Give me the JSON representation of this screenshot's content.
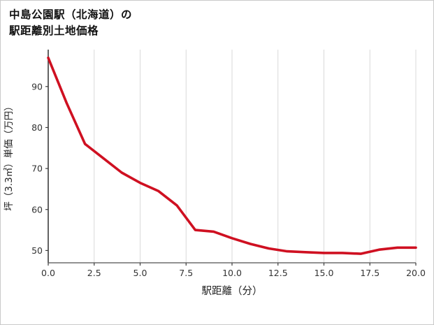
{
  "header": {
    "title_line1": "中島公園駅（北海道）の",
    "title_line2": "駅距離別土地価格"
  },
  "chart_data": {
    "type": "line",
    "title": "中島公園駅（北海道）の駅距離別土地価格",
    "xlabel": "駅距離（分）",
    "ylabel": "坪（3.3㎡）単価（万円）",
    "x": [
      0,
      1,
      2,
      3,
      4,
      5,
      6,
      7,
      8,
      9,
      10,
      11,
      12,
      13,
      14,
      15,
      16,
      17,
      18,
      19,
      20
    ],
    "y": [
      97,
      86,
      76,
      72.5,
      69,
      66.5,
      64.5,
      61,
      55,
      54.6,
      53,
      51.6,
      50.5,
      49.8,
      49.6,
      49.4,
      49.4,
      49.2,
      50.2,
      50.7,
      50.7
    ],
    "xlim": [
      0,
      20
    ],
    "ylim": [
      47,
      99
    ],
    "xticks": [
      "0.0",
      "2.5",
      "5.0",
      "7.5",
      "10.0",
      "12.5",
      "15.0",
      "17.5",
      "20.0"
    ],
    "yticks": [
      50,
      60,
      70,
      80,
      90
    ],
    "line_color": "#cf1021",
    "grid_color": "#d9d9d9",
    "axis_color_left": "#3c3c3c",
    "axis_color_bottom": "#6e6e6e",
    "tick_label_color": "#333333",
    "grid": "vertical",
    "legend": "none"
  }
}
